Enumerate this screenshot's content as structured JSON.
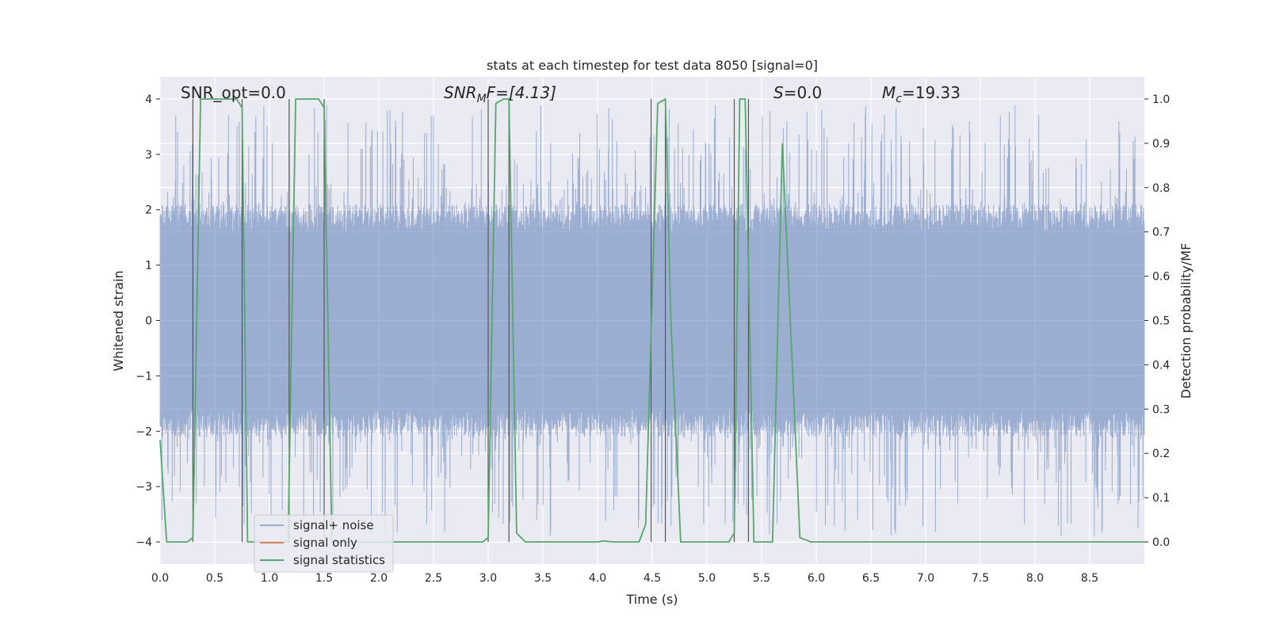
{
  "chart_data": {
    "type": "line",
    "title": "stats at each timestep for test data 8050 [signal=0]",
    "xlabel": "Time (s)",
    "ylabel": "Whitened strain",
    "ylabel_right": "Detection probability/MF",
    "xlim": [
      0.0,
      9.0
    ],
    "ylim": [
      -4.4,
      4.4
    ],
    "ylim_right": [
      -0.05,
      1.05
    ],
    "x_ticks": [
      "0.0",
      "0.5",
      "1.0",
      "1.5",
      "2.0",
      "2.5",
      "3.0",
      "3.5",
      "4.0",
      "4.5",
      "5.0",
      "5.5",
      "6.0",
      "6.5",
      "7.0",
      "7.5",
      "8.0",
      "8.5"
    ],
    "y_ticks": [
      "−4",
      "−3",
      "−2",
      "−1",
      "0",
      "1",
      "2",
      "3",
      "4"
    ],
    "y_ticks_right": [
      "0.0",
      "0.1",
      "0.2",
      "0.3",
      "0.4",
      "0.5",
      "0.6",
      "0.7",
      "0.8",
      "0.9",
      "1.0"
    ],
    "annotations": {
      "snr_opt": "SNR_opt=0.0",
      "snr_mf_label": "SNR",
      "snr_mf_sub": "M",
      "snr_mf_rest": "F=[4.13]",
      "s_label": "S",
      "s_rest": "=0.0",
      "mc_label": "M",
      "mc_sub": "c",
      "mc_rest": "=19.33"
    },
    "legend": {
      "position": "lower-left",
      "entries": [
        "signal+ noise",
        "signal only",
        "signal statistics"
      ]
    },
    "vlines": [
      0.3,
      0.75,
      1.18,
      1.5,
      3.0,
      3.19,
      4.49,
      4.62,
      5.25,
      5.38
    ],
    "series": [
      {
        "name": "signal statistics",
        "axis": "right",
        "color": "#55a868",
        "x": [
          0.0,
          0.06,
          0.25,
          0.3,
          0.37,
          0.7,
          0.75,
          0.8,
          1.17,
          1.24,
          1.45,
          1.5,
          1.57,
          2.95,
          3.0,
          3.07,
          3.14,
          3.19,
          3.26,
          3.34,
          4.0,
          4.05,
          4.15,
          4.38,
          4.44,
          4.55,
          4.62,
          4.67,
          4.76,
          4.84,
          5.2,
          5.25,
          5.3,
          5.35,
          5.43,
          5.6,
          5.69,
          5.79,
          5.85,
          5.95,
          9.0
        ],
        "values": [
          0.23,
          0.0,
          0.0,
          0.01,
          1.0,
          1.0,
          0.98,
          0.0,
          0.0,
          1.0,
          1.0,
          0.98,
          0.0,
          0.0,
          0.01,
          0.99,
          1.0,
          1.0,
          0.02,
          0.0,
          0.0,
          0.002,
          0.0,
          0.0,
          0.04,
          0.99,
          1.0,
          0.5,
          0.0,
          0.0,
          0.0,
          0.02,
          1.0,
          1.0,
          0.0,
          0.0,
          0.9,
          0.35,
          0.01,
          0.0,
          0.0
        ]
      },
      {
        "name": "signal+ noise",
        "axis": "left",
        "color": "#4c72b0",
        "note": "dense noise trace: baseline envelope about ±2.0 with peaks up to about ±3.8",
        "envelope": [
          -2.0,
          2.0
        ],
        "peak_range": [
          -3.9,
          3.9
        ]
      },
      {
        "name": "signal only",
        "axis": "left",
        "color": "#dd8452",
        "values": []
      }
    ]
  }
}
